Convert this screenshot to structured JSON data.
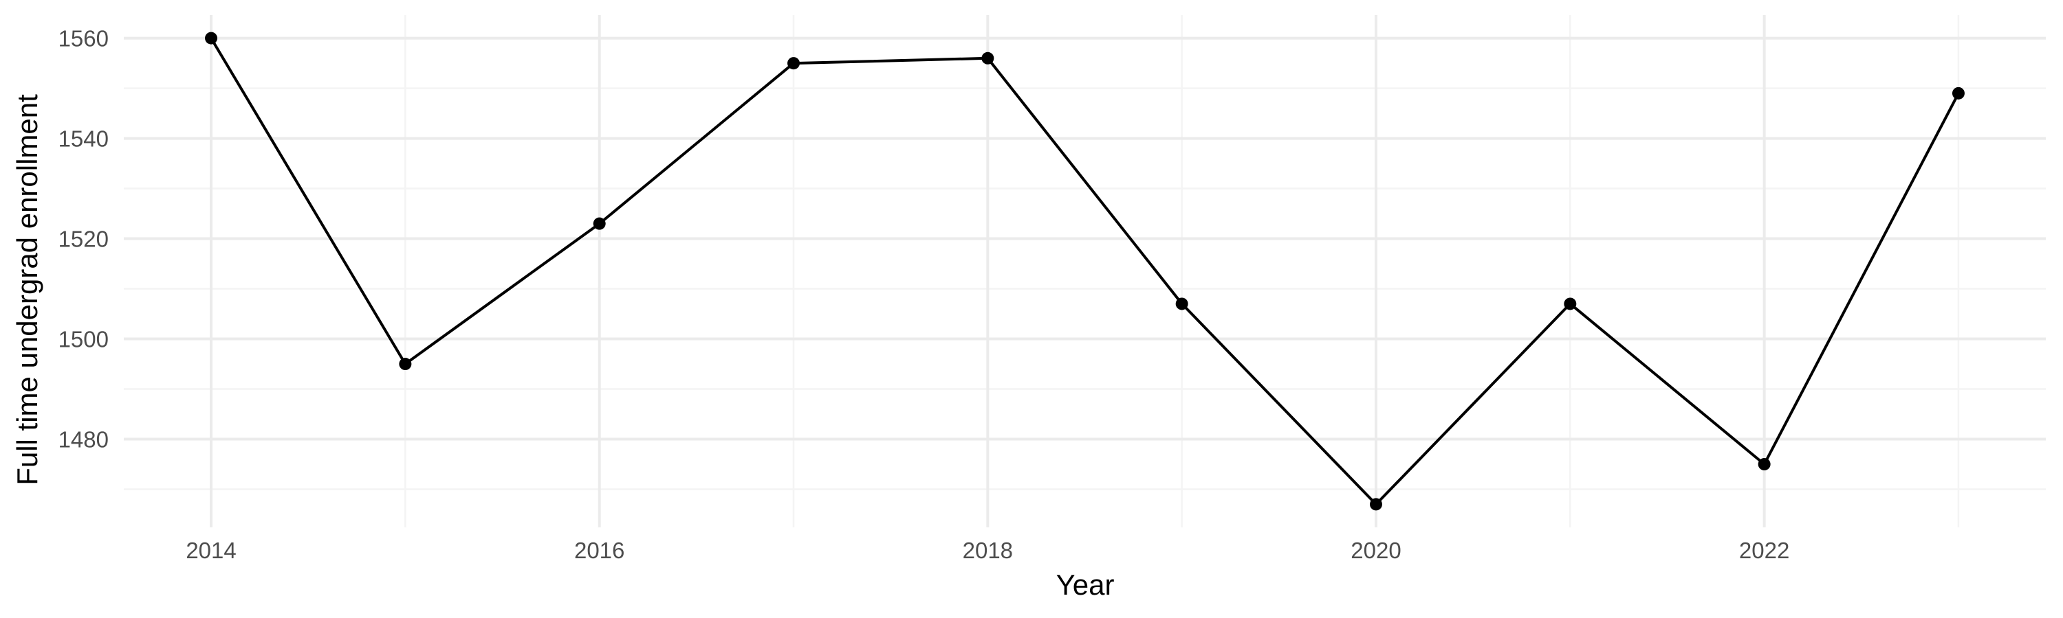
{
  "chart_data": {
    "type": "line",
    "title": "",
    "xlabel": "Year",
    "ylabel": "Full time undergrad enrollment",
    "x": [
      2014,
      2015,
      2016,
      2017,
      2018,
      2019,
      2020,
      2021,
      2022,
      2023
    ],
    "series": [
      {
        "values": [
          1560,
          1495,
          1523,
          1555,
          1556,
          1507,
          1467,
          1507,
          1475,
          1549
        ]
      }
    ],
    "xlim": [
      2013.55,
      2023.45
    ],
    "ylim": [
      1462.4,
      1564.6
    ],
    "x_ticks": [
      2014,
      2016,
      2018,
      2020,
      2022
    ],
    "x_tick_labels": [
      "2014",
      "2016",
      "2018",
      "2020",
      "2022"
    ],
    "y_ticks": [
      1480,
      1500,
      1520,
      1540,
      1560
    ],
    "y_tick_labels": [
      "1480",
      "1500",
      "1520",
      "1540",
      "1560"
    ],
    "grid": true,
    "legend": "none",
    "colors": {
      "line": "#000000",
      "point": "#000000",
      "grid": "#ebebeb",
      "background": "#ffffff"
    }
  }
}
